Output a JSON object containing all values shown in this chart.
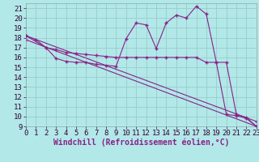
{
  "xlabel": "Windchill (Refroidissement éolien,°C)",
  "background_color": "#b2e8e8",
  "grid_color": "#99cccc",
  "line_color": "#882288",
  "xlim": [
    0,
    23
  ],
  "ylim": [
    9,
    21.5
  ],
  "xticks": [
    0,
    1,
    2,
    3,
    4,
    5,
    6,
    7,
    8,
    9,
    10,
    11,
    12,
    13,
    14,
    15,
    16,
    17,
    18,
    19,
    20,
    21,
    22,
    23
  ],
  "yticks": [
    9,
    10,
    11,
    12,
    13,
    14,
    15,
    16,
    17,
    18,
    19,
    20,
    21
  ],
  "series1_x": [
    0,
    1,
    2,
    3,
    4,
    5,
    6,
    7,
    8,
    9,
    10,
    11,
    12,
    13,
    14,
    15,
    16,
    17,
    18,
    19,
    20,
    21,
    22,
    23
  ],
  "series1_y": [
    18.2,
    17.8,
    17.0,
    15.9,
    15.6,
    15.5,
    15.5,
    15.3,
    15.2,
    15.1,
    17.9,
    19.5,
    19.3,
    16.9,
    19.5,
    20.3,
    20.0,
    21.2,
    20.4,
    15.5,
    10.2,
    10.1,
    9.8,
    9.0
  ],
  "series2_x": [
    0,
    2,
    3,
    4,
    5,
    6,
    7,
    8,
    9,
    10,
    11,
    12,
    13,
    14,
    15,
    16,
    17,
    18,
    19,
    20,
    21,
    22,
    23
  ],
  "series2_y": [
    18.2,
    17.0,
    16.8,
    16.5,
    16.4,
    16.3,
    16.2,
    16.1,
    16.0,
    16.0,
    16.0,
    16.0,
    16.0,
    16.0,
    16.0,
    16.0,
    16.0,
    15.5,
    15.5,
    15.5,
    10.2,
    9.9,
    9.0
  ],
  "series3_x": [
    0,
    23
  ],
  "series3_y": [
    18.2,
    9.5
  ],
  "series4_x": [
    0,
    23
  ],
  "series4_y": [
    17.8,
    9.0
  ],
  "xlabel_fontsize": 7,
  "tick_fontsize": 6.5,
  "markersize": 2.0
}
